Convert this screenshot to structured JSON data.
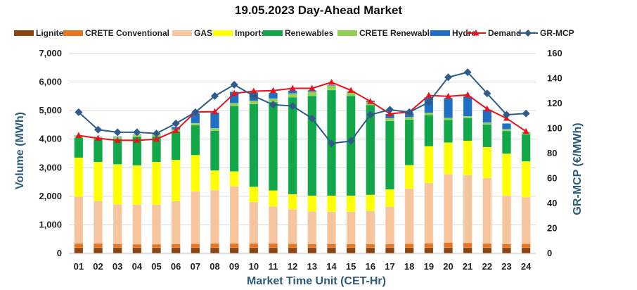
{
  "chart_data": {
    "type": "bar",
    "title": "19.05.2023  Day-Ahead Market",
    "xlabel": "Market Time Unit (CET-Hr)",
    "ylabel": "Volume (MWh)",
    "y2label": "GR-MCP (€/MWh)",
    "ylim": [
      0,
      7000
    ],
    "y2lim": [
      0,
      160
    ],
    "yticks": [
      "0",
      "1,000",
      "2,000",
      "3,000",
      "4,000",
      "5,000",
      "6,000",
      "7,000"
    ],
    "y2ticks": [
      "0",
      "20",
      "40",
      "60",
      "80",
      "100",
      "120",
      "140",
      "160"
    ],
    "categories": [
      "01",
      "02",
      "03",
      "04",
      "05",
      "06",
      "07",
      "08",
      "09",
      "10",
      "11",
      "12",
      "13",
      "14",
      "15",
      "16",
      "17",
      "18",
      "19",
      "20",
      "21",
      "22",
      "23",
      "24"
    ],
    "series": [
      {
        "name": "Lignite",
        "kind": "bar",
        "color": "#8b4513",
        "values": [
          200,
          200,
          200,
          200,
          200,
          200,
          200,
          200,
          200,
          200,
          200,
          200,
          200,
          200,
          200,
          200,
          200,
          200,
          200,
          200,
          200,
          200,
          200,
          200
        ]
      },
      {
        "name": "CRETE Conventional",
        "kind": "bar",
        "color": "#e87522",
        "values": [
          150,
          150,
          130,
          120,
          120,
          130,
          140,
          150,
          150,
          150,
          150,
          140,
          130,
          130,
          130,
          130,
          130,
          140,
          160,
          180,
          170,
          150,
          130,
          140
        ]
      },
      {
        "name": "GAS",
        "kind": "bar",
        "color": "#f6c49d",
        "values": [
          1640,
          1490,
          1390,
          1390,
          1390,
          1500,
          1830,
          1870,
          2000,
          1450,
          1300,
          1200,
          1140,
          1130,
          1130,
          1160,
          1310,
          1930,
          2110,
          2400,
          2370,
          2290,
          1690,
          1630
        ]
      },
      {
        "name": "Imports",
        "kind": "bar",
        "color": "#ffff00",
        "values": [
          1360,
          1360,
          1400,
          1370,
          1490,
          1440,
          1270,
          680,
          520,
          530,
          550,
          530,
          550,
          560,
          560,
          560,
          600,
          820,
          1280,
          1100,
          1200,
          1080,
          1470,
          1250
        ]
      },
      {
        "name": "Renewables",
        "kind": "bar",
        "color": "#12a84a",
        "values": [
          700,
          800,
          900,
          1000,
          900,
          1000,
          1050,
          1400,
          2300,
          2900,
          3100,
          3400,
          3500,
          3700,
          3500,
          3150,
          2400,
          1600,
          1100,
          800,
          800,
          800,
          800,
          950
        ]
      },
      {
        "name": "CRETE Renewables",
        "kind": "bar",
        "color": "#92d050",
        "values": [
          60,
          60,
          60,
          60,
          60,
          60,
          70,
          80,
          90,
          110,
          120,
          130,
          140,
          150,
          130,
          100,
          90,
          80,
          70,
          60,
          60,
          60,
          60,
          60
        ]
      },
      {
        "name": "Hydro",
        "kind": "bar",
        "color": "#1f6fc5",
        "values": [
          20,
          20,
          20,
          20,
          20,
          100,
          350,
          550,
          400,
          300,
          200,
          100,
          50,
          20,
          20,
          50,
          150,
          150,
          550,
          700,
          700,
          450,
          200,
          20
        ]
      },
      {
        "name": "Demand",
        "kind": "line",
        "axis": "left",
        "color": "#e8141c",
        "values": [
          4130,
          4030,
          3960,
          3960,
          4000,
          4300,
          4950,
          4960,
          5600,
          5680,
          5700,
          5780,
          5780,
          5990,
          5710,
          5320,
          4890,
          4950,
          5530,
          5500,
          5550,
          5060,
          4730,
          4270
        ]
      },
      {
        "name": "GR-MCP",
        "kind": "line",
        "axis": "right",
        "color": "#2e5b8a",
        "values": [
          113,
          99,
          97,
          97,
          96,
          104,
          113,
          126,
          135,
          126,
          119,
          118,
          108,
          88,
          90,
          111,
          115,
          113,
          121,
          141,
          145,
          128,
          111,
          112
        ]
      }
    ]
  }
}
